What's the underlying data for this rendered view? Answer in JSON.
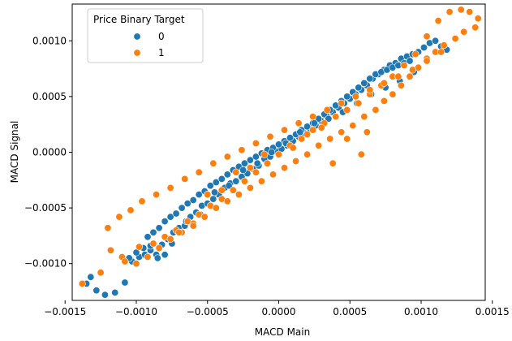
{
  "chart_data": {
    "type": "scatter",
    "title": "",
    "xlabel": "MACD Main",
    "ylabel": "MACD Signal",
    "xlim": [
      -0.00145,
      0.00145
    ],
    "ylim": [
      -0.00133,
      0.00133
    ],
    "xticks": [
      -0.0015,
      -0.001,
      -0.0005,
      0,
      0.0005,
      0.001,
      0.0015
    ],
    "xtick_labels": [
      "−0.0015",
      "−0.0010",
      "−0.0005",
      "0.0000",
      "0.0005",
      "0.0010",
      "0.0015"
    ],
    "yticks": [
      -0.001,
      -0.0005,
      0,
      0.0005,
      0.001
    ],
    "ytick_labels": [
      "−0.0010",
      "−0.0005",
      "0.0000",
      "0.0005",
      "0.0010"
    ],
    "grid": false,
    "legend": {
      "title": "Price Binary Target",
      "placement": "top-left"
    },
    "series": [
      {
        "name": "0",
        "color": "#1f77b4",
        "description_points": "dense diagonal cloud from lower-left to upper-right",
        "x": [
          -0.00135,
          -0.00132,
          -0.00128,
          -0.00122,
          -0.00115,
          -0.00108,
          -0.00103,
          -0.00098,
          -0.00094,
          -0.0009,
          -0.00086,
          -0.00082,
          -0.00078,
          -0.00074,
          -0.0007,
          -0.00066,
          -0.00062,
          -0.00058,
          -0.00054,
          -0.0005,
          -0.00046,
          -0.00042,
          -0.00038,
          -0.00034,
          -0.0003,
          -0.00026,
          -0.00022,
          -0.00018,
          -0.00014,
          -0.0001,
          -6e-05,
          -2e-05,
          2e-05,
          6e-05,
          0.0001,
          0.00014,
          0.00018,
          0.00022,
          0.00026,
          0.0003,
          0.00034,
          0.00038,
          0.00042,
          0.00046,
          0.0005,
          0.00054,
          0.00058,
          0.00062,
          0.00066,
          0.0007,
          0.00074,
          0.00078,
          0.00082,
          0.00086,
          0.0009,
          0.00094,
          0.00098,
          0.00102,
          0.00106,
          0.0011,
          0.00114,
          0.00118,
          -0.00092,
          -0.00088,
          -0.00084,
          -0.0008,
          -0.00076,
          -0.00072,
          -0.00068,
          -0.00064,
          -0.0006,
          -0.00056,
          -0.00052,
          -0.00048,
          -0.00044,
          -0.0004,
          -0.00036,
          -0.00032,
          -0.00028,
          -0.00024,
          -0.0002,
          -0.00016,
          -0.00012,
          -8e-05,
          -4e-05,
          0.0,
          4e-05,
          8e-05,
          0.00012,
          0.00016,
          0.0002,
          0.00024,
          0.00028,
          0.00032,
          0.00036,
          0.0004,
          0.00044,
          0.00048,
          0.00052,
          0.00056,
          0.0006,
          0.00064,
          0.00068,
          0.00072,
          0.00076,
          0.0008,
          0.00084,
          0.00088,
          0.00092,
          -0.00075,
          -0.00065,
          -0.00055,
          -0.00045,
          -0.00035,
          -0.00025,
          -0.00015,
          -5e-05,
          5e-05,
          0.00015,
          0.00025,
          0.00035,
          0.00045,
          0.00055,
          0.00065,
          0.00075,
          0.00085,
          0.00095,
          -0.0009,
          -0.00085,
          -0.0008,
          -0.00095,
          -0.001,
          -0.00105
        ],
        "y": [
          -0.00118,
          -0.00112,
          -0.00124,
          -0.00128,
          -0.00126,
          -0.00117,
          -0.00098,
          -0.00094,
          -0.00092,
          -0.00088,
          -0.00092,
          -0.00083,
          -0.00078,
          -0.00072,
          -0.00068,
          -0.00066,
          -0.00058,
          -0.00054,
          -0.00048,
          -0.00046,
          -0.00042,
          -0.00038,
          -0.00032,
          -0.00028,
          -0.00026,
          -0.00022,
          -0.00019,
          -0.00015,
          -0.00012,
          -6e-05,
          -4e-05,
          1e-05,
          3e-05,
          6e-05,
          0.0001,
          0.00014,
          0.00017,
          0.00021,
          0.00024,
          0.00028,
          0.00032,
          0.00036,
          0.0004,
          0.00044,
          0.00048,
          0.00052,
          0.00056,
          0.0006,
          0.00066,
          0.0007,
          0.00074,
          0.00078,
          0.0008,
          0.00084,
          0.00086,
          0.00088,
          0.0009,
          0.00094,
          0.00098,
          0.001,
          0.00095,
          0.00092,
          -0.00076,
          -0.00072,
          -0.00068,
          -0.00062,
          -0.00058,
          -0.00055,
          -0.0005,
          -0.00046,
          -0.00043,
          -0.00038,
          -0.00035,
          -0.0003,
          -0.00027,
          -0.00024,
          -0.0002,
          -0.00016,
          -0.00013,
          -0.0001,
          -7e-05,
          -4e-05,
          -1e-05,
          2e-05,
          4e-05,
          7e-05,
          0.0001,
          0.00013,
          0.00016,
          0.0002,
          0.00023,
          0.00026,
          0.0003,
          0.00034,
          0.00038,
          0.00042,
          0.00046,
          0.0005,
          0.00054,
          0.00058,
          0.00062,
          0.00066,
          0.0007,
          0.00072,
          0.00074,
          0.00076,
          0.00078,
          0.0008,
          0.00082,
          -0.00082,
          -0.00062,
          -0.00056,
          -0.00036,
          -0.0003,
          -0.00016,
          -0.0001,
          0.0,
          8e-05,
          0.00018,
          0.00026,
          0.0003,
          0.00036,
          0.00044,
          0.00052,
          0.00058,
          0.00064,
          0.00072,
          -0.00084,
          -0.00095,
          -0.00092,
          -0.00086,
          -0.0009,
          -0.00095
        ]
      },
      {
        "name": "1",
        "color": "#ff7f0e",
        "x": [
          -0.00138,
          -0.00125,
          -0.0011,
          -0.00098,
          -0.00088,
          -0.0008,
          -0.00072,
          -0.00064,
          -0.00056,
          -0.00048,
          -0.0004,
          -0.00032,
          -0.00024,
          -0.00016,
          -8e-05,
          0.0,
          8e-05,
          0.00016,
          0.00024,
          0.00032,
          0.0004,
          0.00048,
          0.00056,
          0.00064,
          0.00072,
          0.0008,
          0.00088,
          0.00096,
          0.00104,
          0.00112,
          0.0012,
          0.00128,
          0.00134,
          0.0014,
          0.00138,
          0.0013,
          0.00124,
          0.00116,
          0.0011,
          0.00104,
          0.00098,
          0.00092,
          0.00086,
          0.0008,
          0.00074,
          0.00068,
          0.0006,
          0.00052,
          0.00044,
          0.00036,
          0.00028,
          0.0002,
          0.00012,
          4e-05,
          -4e-05,
          -0.00012,
          -0.0002,
          -0.00028,
          -0.00036,
          -0.00044,
          -0.00052,
          -0.0006,
          -0.00068,
          -0.00076,
          -0.00084,
          -0.00092,
          -0.001,
          -0.00108,
          -0.00118,
          -0.0012,
          -0.00112,
          -0.00104,
          -0.00096,
          -0.00086,
          -0.00076,
          -0.00066,
          -0.00056,
          -0.00046,
          -0.00036,
          -0.00026,
          -0.00016,
          -6e-05,
          4e-05,
          0.00014,
          0.00024,
          0.00034,
          0.00044,
          0.00054,
          0.00064,
          0.00074,
          0.00084,
          0.00094,
          0.00104,
          0.00114,
          0.00062,
          0.00048,
          0.00038,
          0.00058,
          -0.0007,
          -0.0006,
          -0.0005,
          -0.0004,
          -0.0003,
          -0.0002,
          -0.0001,
          0.0001,
          0.0002,
          0.0003
        ],
        "y": [
          -0.00118,
          -0.00108,
          -0.00094,
          -0.00085,
          -0.00082,
          -0.00076,
          -0.0007,
          -0.00062,
          -0.00056,
          -0.00048,
          -0.00042,
          -0.00034,
          -0.00026,
          -0.00018,
          -0.0001,
          -2e-05,
          6e-05,
          0.00012,
          0.0002,
          0.00026,
          0.00032,
          0.00038,
          0.00044,
          0.00052,
          0.0006,
          0.00068,
          0.00078,
          0.00088,
          0.00104,
          0.00118,
          0.00126,
          0.00128,
          0.00126,
          0.0012,
          0.00112,
          0.00108,
          0.00102,
          0.00096,
          0.0009,
          0.00084,
          0.00076,
          0.00068,
          0.0006,
          0.00052,
          0.00046,
          0.00038,
          0.00032,
          0.00024,
          0.00018,
          0.00012,
          6e-05,
          -2e-05,
          -8e-05,
          -0.00014,
          -0.0002,
          -0.00026,
          -0.00032,
          -0.00038,
          -0.00044,
          -0.0005,
          -0.00058,
          -0.00064,
          -0.00072,
          -0.00078,
          -0.00086,
          -0.00094,
          -0.001,
          -0.00098,
          -0.00088,
          -0.00068,
          -0.00058,
          -0.00052,
          -0.00044,
          -0.00038,
          -0.00032,
          -0.00024,
          -0.00018,
          -0.0001,
          -4e-05,
          2e-05,
          8e-05,
          0.00014,
          0.0002,
          0.00026,
          0.00032,
          0.00038,
          0.00044,
          0.0005,
          0.00056,
          0.00062,
          0.00068,
          0.00074,
          0.00082,
          0.0009,
          0.00018,
          0.00012,
          -0.0001,
          -2e-05,
          -0.00072,
          -0.00066,
          -0.00038,
          -0.00034,
          -0.00018,
          -0.00014,
          -2e-05,
          4e-05,
          0.00016,
          0.00022
        ]
      }
    ]
  }
}
